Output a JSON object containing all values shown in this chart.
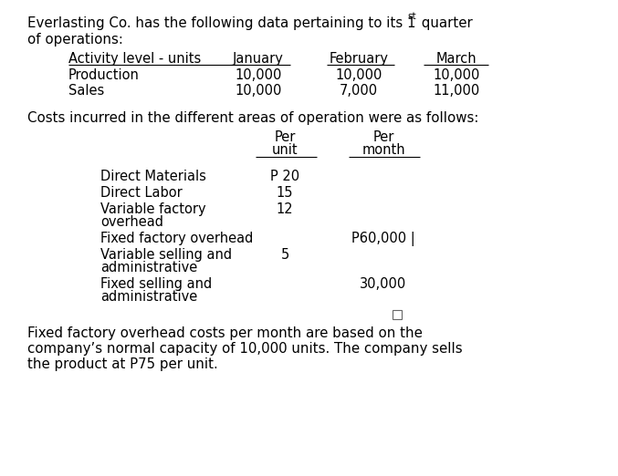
{
  "bg_color": "#ffffff",
  "text_color": "#000000",
  "title_line1": "Everlasting Co. has the following data pertaining to its 1",
  "title_sup": "st",
  "title_line1b": " quarter",
  "title_line2": "of operations:",
  "table1_header": [
    "Activity level - units",
    "January",
    "February",
    "March"
  ],
  "table1_rows": [
    [
      "Production",
      "10,000",
      "10,000",
      "10,000"
    ],
    [
      "Sales",
      "10,000",
      "7,000",
      "11,000"
    ]
  ],
  "costs_intro": "Costs incurred in the different areas of operation were as follows:",
  "cost_rows": [
    {
      "label": "Direct Materials",
      "per_unit": "P 20",
      "per_month": ""
    },
    {
      "label": "Direct Labor",
      "per_unit": "15",
      "per_month": ""
    },
    {
      "label": "Variable factory\noverhead",
      "per_unit": "12",
      "per_month": ""
    },
    {
      "label": "Fixed factory overhead",
      "per_unit": "",
      "per_month": "P60,000 |"
    },
    {
      "label": "Variable selling and\nadministrative",
      "per_unit": "5",
      "per_month": ""
    },
    {
      "label": "Fixed selling and\nadministrative",
      "per_unit": "",
      "per_month": "30,000"
    }
  ],
  "footer_line1": "Fixed factory overhead costs per month are based on the",
  "footer_line2": "company’s normal capacity of 10,000 units. The company sells",
  "footer_line3": "the product at P75 per unit."
}
